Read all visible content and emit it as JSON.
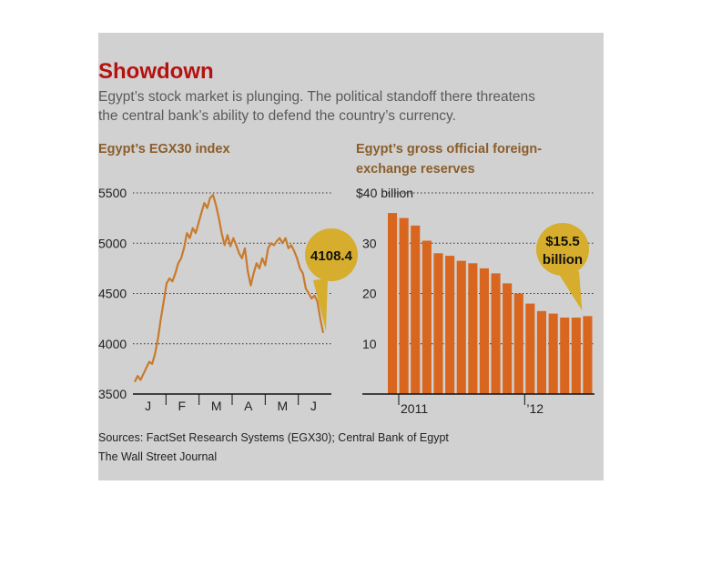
{
  "header": {
    "title": "Showdown",
    "subtitle_line1": "Egypt’s stock market is plunging. The political standoff there threatens",
    "subtitle_line2": "the central bank’s ability to defend the country’s currency."
  },
  "footer": {
    "sources": "Sources: FactSet Research Systems (EGX30); Central Bank of Egypt",
    "credit": "The Wall Street Journal"
  },
  "colors": {
    "panel_bg": "#d1d1d1",
    "line": "#c97a2c",
    "bar": "#d9661f",
    "title": "#b5120f",
    "callout": "#d6ad2c"
  },
  "chart_data": [
    {
      "type": "line",
      "title": "Egypt’s EGX30 index",
      "xlabel": "",
      "ylabel": "",
      "x_tick_labels": [
        "J",
        "F",
        "M",
        "A",
        "M",
        "J"
      ],
      "ylim": [
        3500,
        5500
      ],
      "yticks": [
        3500,
        4000,
        4500,
        5000,
        5500
      ],
      "ytick_labels": [
        "3500",
        "4000",
        "4500",
        "5000",
        "5500"
      ],
      "grid": true,
      "series": [
        {
          "values": [
            3620,
            3680,
            3640,
            3700,
            3760,
            3820,
            3800,
            3900,
            4050,
            4250,
            4420,
            4600,
            4650,
            4620,
            4700,
            4800,
            4850,
            4950,
            5100,
            5050,
            5150,
            5100,
            5200,
            5300,
            5400,
            5350,
            5450,
            5480,
            5380,
            5250,
            5100,
            4980,
            5080,
            4970,
            5050,
            4980,
            4900,
            4850,
            4950,
            4720,
            4580,
            4700,
            4800,
            4750,
            4850,
            4780,
            4950,
            5000,
            4980,
            5020,
            5050,
            5000,
            5050,
            4950,
            4980,
            4920,
            4850,
            4750,
            4700,
            4550,
            4500,
            4450,
            4480,
            4420,
            4250,
            4108.4
          ]
        }
      ],
      "annotation": "4108.4"
    },
    {
      "type": "bar",
      "title_line1": "Egypt’s gross official foreign-",
      "title_line2": "exchange reserves",
      "xlabel": "",
      "ylabel": "",
      "y_top_label": "$40 billion",
      "ylim": [
        0,
        40
      ],
      "yticks": [
        10,
        20,
        30
      ],
      "ytick_labels": [
        "10",
        "20",
        "30"
      ],
      "x_tick_labels": [
        "2011",
        "’12"
      ],
      "grid": true,
      "values": [
        36,
        35,
        33.5,
        30.5,
        28,
        27.5,
        26.5,
        26,
        25,
        24,
        22,
        20,
        18,
        16.5,
        16,
        15.2,
        15.2,
        15.5
      ],
      "annotation_line1": "$15.5",
      "annotation_line2": "billion"
    }
  ]
}
